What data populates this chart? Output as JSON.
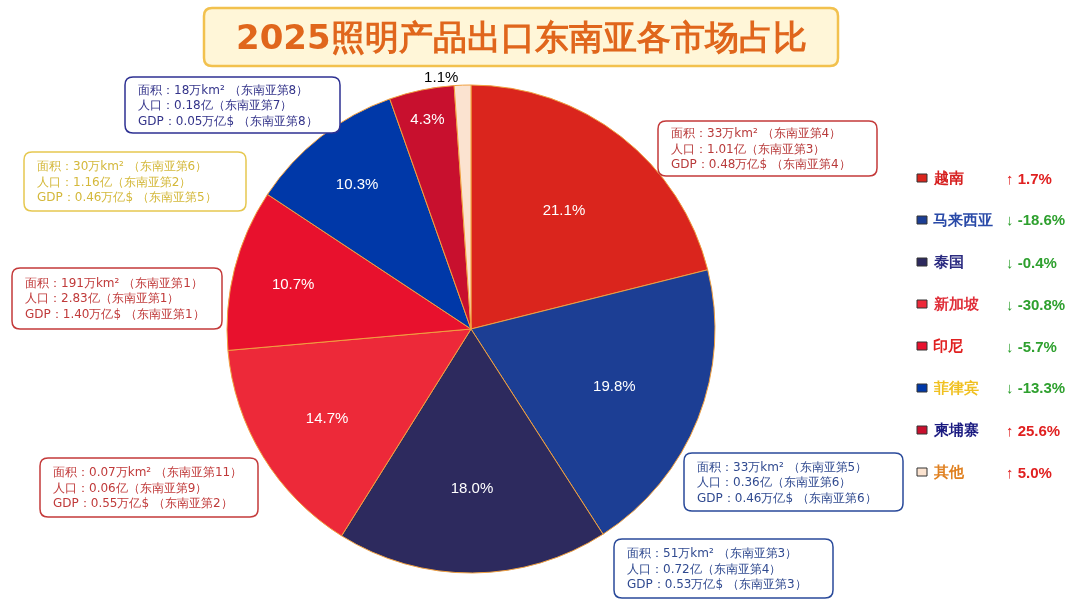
{
  "chart_data": {
    "type": "pie",
    "title": "2025照明产品出口东南亚各市场占比",
    "categories": [
      "越南",
      "马来西亚",
      "泰国",
      "新加坡",
      "印尼",
      "菲律宾",
      "柬埔寨",
      "其他"
    ],
    "values": [
      21.1,
      19.8,
      18.0,
      14.7,
      10.7,
      10.3,
      4.3,
      1.1
    ],
    "colors": [
      "#da251d",
      "#1c3e94",
      "#2d2a5e",
      "#ed2939",
      "#e8112d",
      "#0038a8",
      "#c8102e",
      "#fbe3d0"
    ],
    "value_labels": [
      "21.1%",
      "19.8%",
      "18.0%",
      "14.7%",
      "10.7%",
      "10.3%",
      "4.3%",
      "1.1%"
    ],
    "legend": "right",
    "annotations": [
      "面积：18万km² （东南亚第8）",
      "人口：0.18亿（东南亚第7）",
      "GDP：0.05万亿$ （东南亚第8）",
      "面积：33万km² （东南亚第4）",
      "人口：1.01亿（东南亚第3）",
      "GDP：0.48万亿$ （东南亚第4）",
      "面积：30万km² （东南亚第6）",
      "人口：1.16亿（东南亚第2）",
      "GDP：0.46万亿$ （东南亚第5）",
      "面积：191万km² （东南亚第1）",
      "人口：2.83亿（东南亚第1）",
      "GDP：1.40万亿$ （东南亚第1）",
      "面积：0.07万km² （东南亚第11）",
      "人口：0.06亿（东南亚第9）",
      "GDP：0.55万亿$ （东南亚第2）",
      "面积：33万km² （东南亚第5）",
      "人口：0.36亿（东南亚第6）",
      "GDP：0.46万亿$ （东南亚第6）",
      "面积：51万km² （东南亚第3）",
      "人口：0.72亿（东南亚第4）",
      "GDP：0.53万亿$ （东南亚第3）",
      "↑ 1.7%",
      "↓ -18.6%",
      "↓ -0.4%",
      "↓ -30.8%",
      "↓ -5.7%",
      "↓ -13.3%",
      "↑ 25.6%",
      "↑ 5.0%"
    ]
  }
}
